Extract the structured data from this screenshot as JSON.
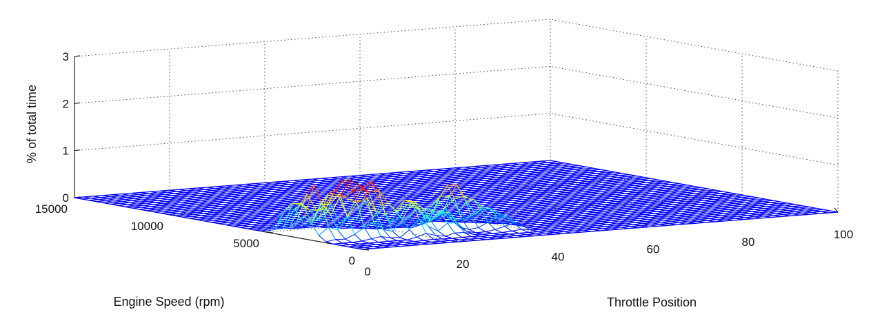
{
  "chart_data": {
    "type": "surface",
    "title": "",
    "xlabel": "Throttle Position",
    "ylabel": "Engine Speed (rpm)",
    "zlabel": "% of total time",
    "xlim": [
      0,
      100
    ],
    "ylim": [
      0,
      15000
    ],
    "zlim": [
      0,
      3
    ],
    "x_ticks": [
      "0",
      "20",
      "40",
      "60",
      "80",
      "100"
    ],
    "y_ticks": [
      "0",
      "5000",
      "10000",
      "15000"
    ],
    "z_ticks": [
      "0",
      "1",
      "2",
      "3"
    ],
    "grid": true,
    "colormap": "jet",
    "peaks": [
      {
        "throttle": 2,
        "rpm": 3000,
        "percent": 1.1
      },
      {
        "throttle": 3,
        "rpm": 4200,
        "percent": 0.75
      },
      {
        "throttle": 7,
        "rpm": 2800,
        "percent": 1.1
      },
      {
        "throttle": 9,
        "rpm": 3800,
        "percent": 0.9
      },
      {
        "throttle": 10,
        "rpm": 2500,
        "percent": 0.85
      },
      {
        "throttle": 13,
        "rpm": 3000,
        "percent": 0.8
      },
      {
        "throttle": 15,
        "rpm": 2800,
        "percent": 0.6
      },
      {
        "throttle": 18,
        "rpm": 2000,
        "percent": 0.7
      },
      {
        "throttle": 21,
        "rpm": 2500,
        "percent": 0.6
      },
      {
        "throttle": 25,
        "rpm": 2000,
        "percent": 0.55
      },
      {
        "throttle": 29,
        "rpm": 3000,
        "percent": 0.7
      },
      {
        "throttle": 32,
        "rpm": 3000,
        "percent": 0.75
      },
      {
        "throttle": 35,
        "rpm": 2500,
        "percent": 0.45
      },
      {
        "throttle": 38,
        "rpm": 2000,
        "percent": 0.25
      }
    ]
  }
}
